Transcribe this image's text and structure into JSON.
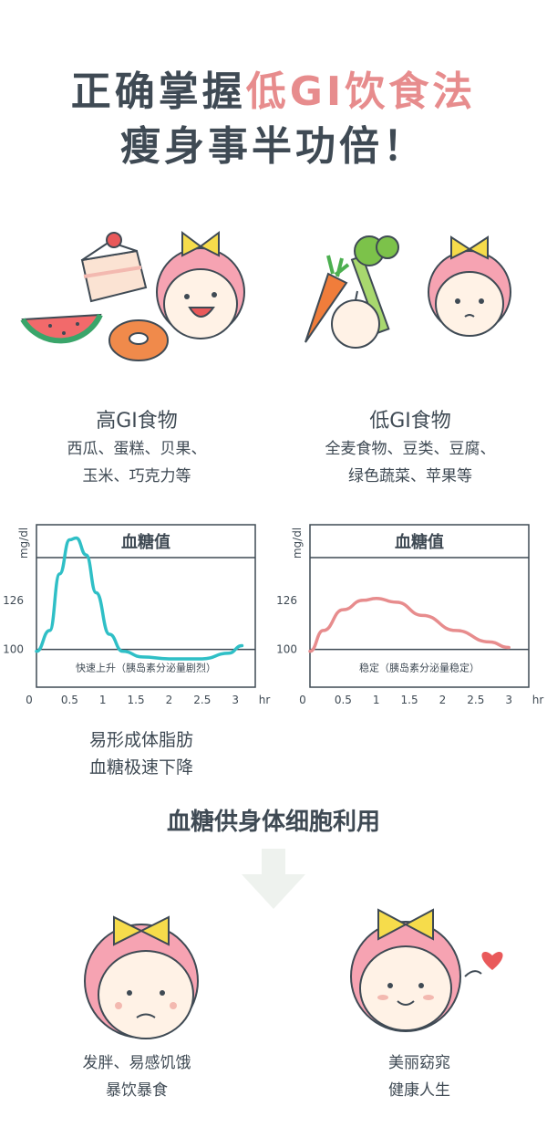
{
  "header": {
    "line1_prefix": "正确掌握",
    "line1_accent": "低GI饮食法",
    "line2": "瘦身事半功倍！"
  },
  "high_gi": {
    "title": "高GI食物",
    "list_line1": "西瓜、蛋糕、贝果、",
    "list_line2": "玉米、巧克力等",
    "color": "#2fbfc6"
  },
  "low_gi": {
    "title": "低GI食物",
    "list_line1": "全麦食物、豆类、豆腐、",
    "list_line2": "绿色蔬菜、苹果等",
    "color": "#e78c8d"
  },
  "chart_data": [
    {
      "type": "line",
      "title": "血糖值",
      "ylabel": "mg/dl",
      "xlabel": "hr",
      "x_ticks": [
        "0",
        "0.5",
        "1",
        "1.5",
        "2",
        "2.5",
        "3"
      ],
      "y_ticks": [
        "100",
        "126"
      ],
      "annotation": "快速上升（胰岛素分泌量剧烈）",
      "xlim": [
        0,
        3.3
      ],
      "ylim": [
        80,
        166
      ],
      "series": [
        {
          "color": "#2fbfc6",
          "x": [
            0,
            0.2,
            0.35,
            0.5,
            0.6,
            0.75,
            0.9,
            1.1,
            1.3,
            1.6,
            2.0,
            2.5,
            2.9,
            3.1
          ],
          "y": [
            99,
            110,
            140,
            158,
            159,
            150,
            130,
            108,
            99,
            96,
            95,
            95,
            98,
            102
          ]
        }
      ]
    },
    {
      "type": "line",
      "title": "血糖值",
      "ylabel": "mg/dl",
      "xlabel": "hr",
      "x_ticks": [
        "0",
        "0.5",
        "1",
        "1.5",
        "2",
        "2.5",
        "3"
      ],
      "y_ticks": [
        "100",
        "126"
      ],
      "annotation": "稳定（胰岛素分泌量稳定）",
      "xlim": [
        0,
        3.3
      ],
      "ylim": [
        80,
        166
      ],
      "series": [
        {
          "color": "#e78c8d",
          "x": [
            0,
            0.2,
            0.5,
            0.8,
            1.0,
            1.3,
            1.7,
            2.2,
            2.7,
            3.0
          ],
          "y": [
            99,
            110,
            121,
            126,
            127,
            125,
            118,
            110,
            104,
            101
          ]
        }
      ]
    }
  ],
  "notes": {
    "line1": "易形成体脂肪",
    "line2": "血糖极速下降"
  },
  "caption": "血糖供身体细胞利用",
  "bottom_left": {
    "line1": "发胖、易感饥饿",
    "line2": "暴饮暴食"
  },
  "bottom_right": {
    "line1": "美丽窈窕",
    "line2": "健康人生"
  }
}
